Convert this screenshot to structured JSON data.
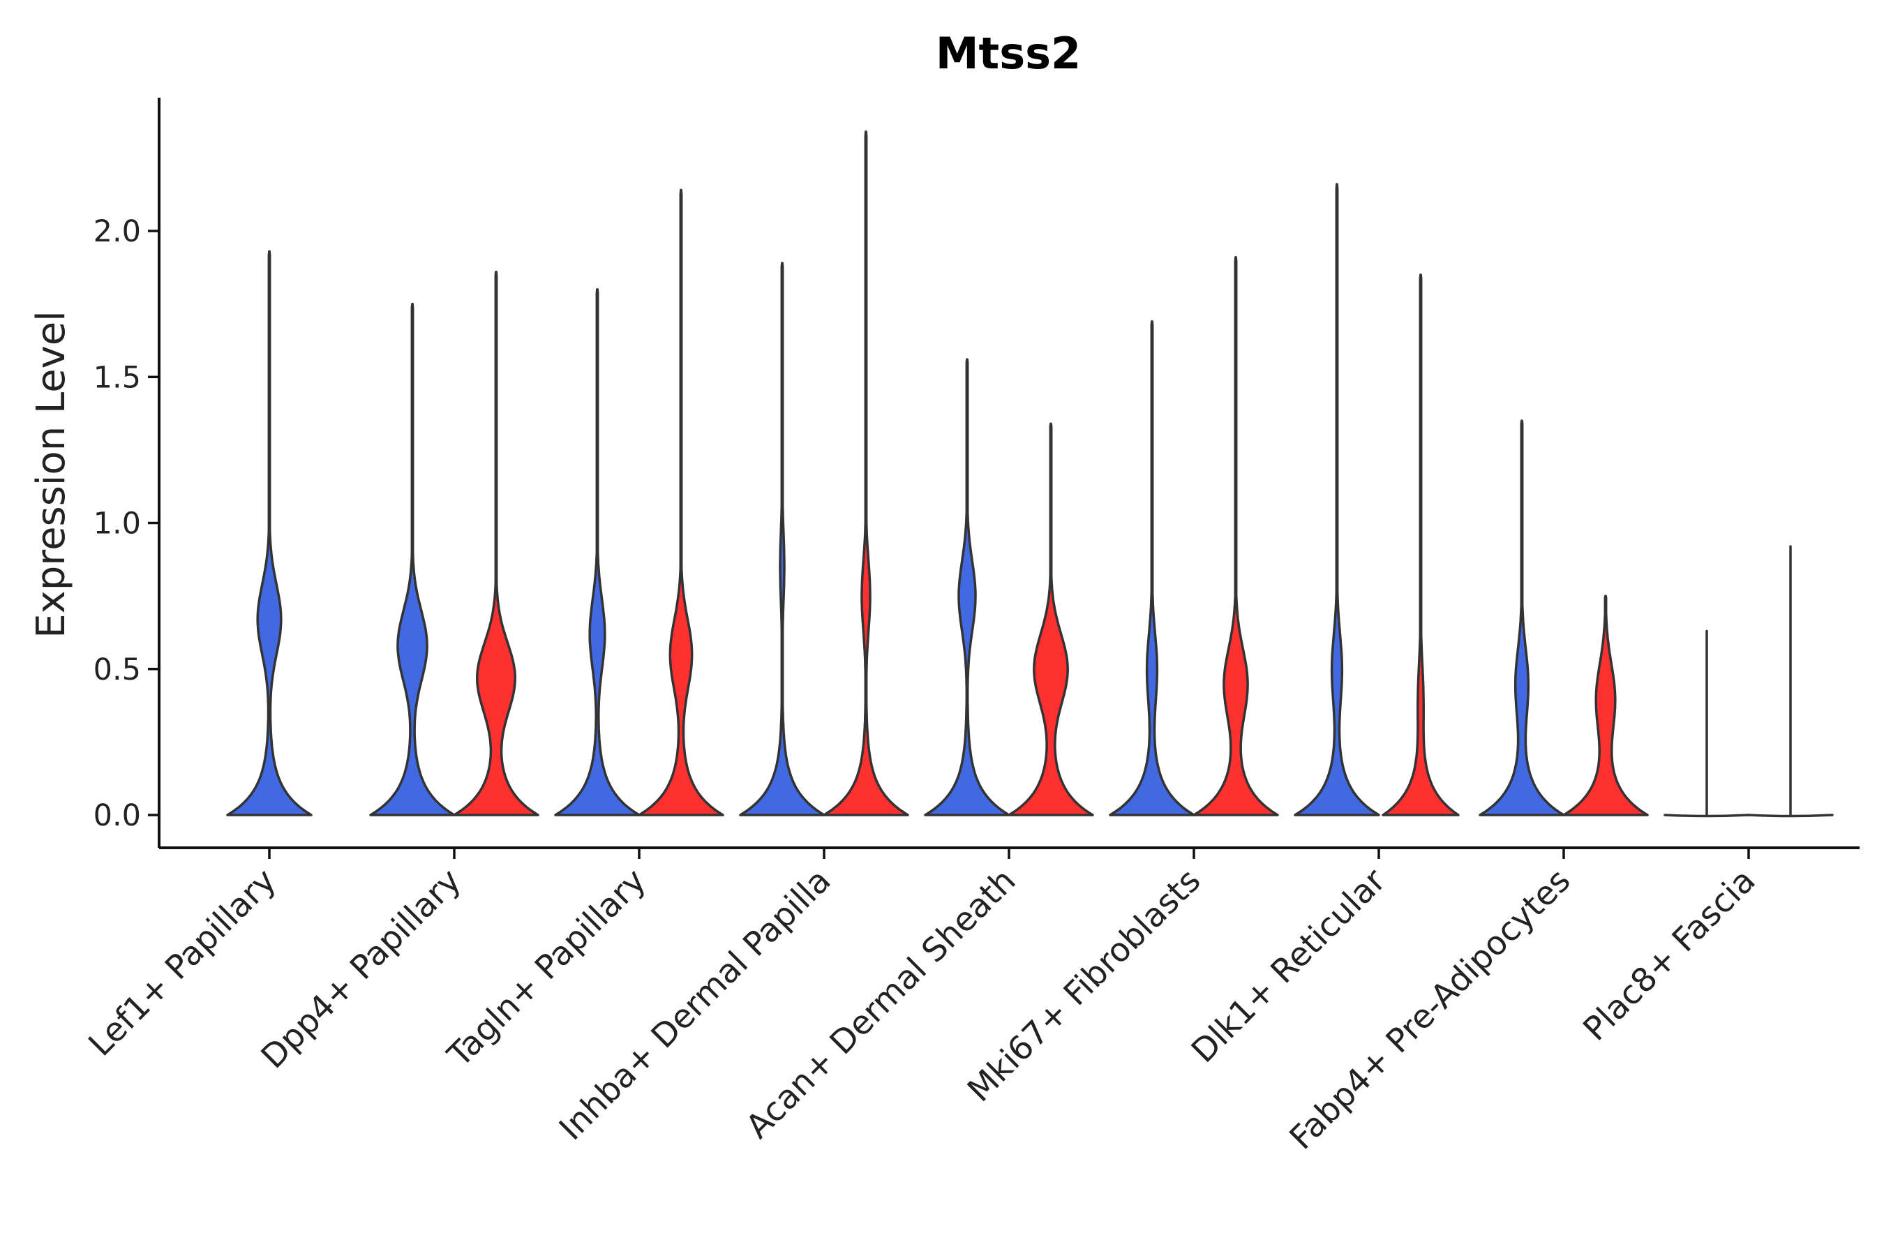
{
  "chart_data": {
    "type": "violin",
    "title": "Mtss2",
    "xlabel": "",
    "ylabel": "Expression Level",
    "ylim": [
      -0.12,
      2.45
    ],
    "yticks": [
      0.0,
      0.5,
      1.0,
      1.5,
      2.0
    ],
    "ytick_labels": [
      "0.0",
      "0.5",
      "1.0",
      "1.5",
      "2.0"
    ],
    "colors": {
      "group1": "#4169E1",
      "group2": "#FF3030",
      "outline": "#333333"
    },
    "groups": [
      "group1",
      "group2"
    ],
    "categories": [
      {
        "name": "Lef1+ Papillary",
        "violins": [
          {
            "group": "group1",
            "max": 1.93,
            "peak_y": 0.0,
            "peak_halfwidth": 1.0,
            "mode2_y": 0.67,
            "mode2_halfwidth": 0.28
          }
        ]
      },
      {
        "name": "Dpp4+ Papillary",
        "violins": [
          {
            "group": "group1",
            "max": 1.75,
            "peak_y": 0.0,
            "peak_halfwidth": 1.0,
            "mode2_y": 0.58,
            "mode2_halfwidth": 0.35
          },
          {
            "group": "group2",
            "max": 1.86,
            "peak_y": 0.0,
            "peak_halfwidth": 1.0,
            "mode2_y": 0.47,
            "mode2_halfwidth": 0.45
          }
        ]
      },
      {
        "name": "Tagln+ Papillary",
        "violins": [
          {
            "group": "group1",
            "max": 1.8,
            "peak_y": 0.0,
            "peak_halfwidth": 1.0,
            "mode2_y": 0.62,
            "mode2_halfwidth": 0.18
          },
          {
            "group": "group2",
            "max": 2.14,
            "peak_y": 0.0,
            "peak_halfwidth": 1.0,
            "mode2_y": 0.55,
            "mode2_halfwidth": 0.26
          }
        ]
      },
      {
        "name": "Inhba+ Dermal Papilla",
        "violins": [
          {
            "group": "group1",
            "max": 1.89,
            "peak_y": 0.0,
            "peak_halfwidth": 1.0,
            "mode2_y": 0.85,
            "mode2_halfwidth": 0.05
          },
          {
            "group": "group2",
            "max": 2.34,
            "peak_y": 0.0,
            "peak_halfwidth": 1.0,
            "mode2_y": 0.75,
            "mode2_halfwidth": 0.1
          }
        ]
      },
      {
        "name": "Acan+ Dermal Sheath",
        "violins": [
          {
            "group": "group1",
            "max": 1.56,
            "peak_y": 0.0,
            "peak_halfwidth": 1.0,
            "mode2_y": 0.75,
            "mode2_halfwidth": 0.2
          },
          {
            "group": "group2",
            "max": 1.34,
            "peak_y": 0.0,
            "peak_halfwidth": 1.0,
            "mode2_y": 0.5,
            "mode2_halfwidth": 0.4
          }
        ]
      },
      {
        "name": "Mki67+ Fibroblasts",
        "violins": [
          {
            "group": "group1",
            "max": 1.69,
            "peak_y": 0.0,
            "peak_halfwidth": 1.0,
            "mode2_y": 0.5,
            "mode2_halfwidth": 0.12
          },
          {
            "group": "group2",
            "max": 1.91,
            "peak_y": 0.0,
            "peak_halfwidth": 1.0,
            "mode2_y": 0.45,
            "mode2_halfwidth": 0.28
          }
        ]
      },
      {
        "name": "Dlk1+ Reticular",
        "violins": [
          {
            "group": "group1",
            "max": 2.16,
            "peak_y": 0.0,
            "peak_halfwidth": 1.0,
            "mode2_y": 0.5,
            "mode2_halfwidth": 0.12
          },
          {
            "group": "group2",
            "max": 1.85,
            "peak_y": 0.0,
            "peak_halfwidth": 0.9,
            "mode2_y": 0.4,
            "mode2_halfwidth": 0.06
          }
        ]
      },
      {
        "name": "Fabp4+ Pre-Adipocytes",
        "violins": [
          {
            "group": "group1",
            "max": 1.35,
            "peak_y": 0.0,
            "peak_halfwidth": 1.0,
            "mode2_y": 0.45,
            "mode2_halfwidth": 0.15
          },
          {
            "group": "group2",
            "max": 0.75,
            "peak_y": 0.0,
            "peak_halfwidth": 1.0,
            "mode2_y": 0.4,
            "mode2_halfwidth": 0.22
          }
        ]
      },
      {
        "name": "Plac8+ Fascia",
        "violins": [
          {
            "group": "group1",
            "max": 0.63,
            "peak_y": 0.0,
            "peak_halfwidth": 1.0,
            "mode2_y": 0.0,
            "mode2_halfwidth": 0.0
          },
          {
            "group": "group2",
            "max": 0.92,
            "peak_y": 0.0,
            "peak_halfwidth": 1.0,
            "mode2_y": 0.0,
            "mode2_halfwidth": 0.0
          }
        ]
      }
    ]
  }
}
